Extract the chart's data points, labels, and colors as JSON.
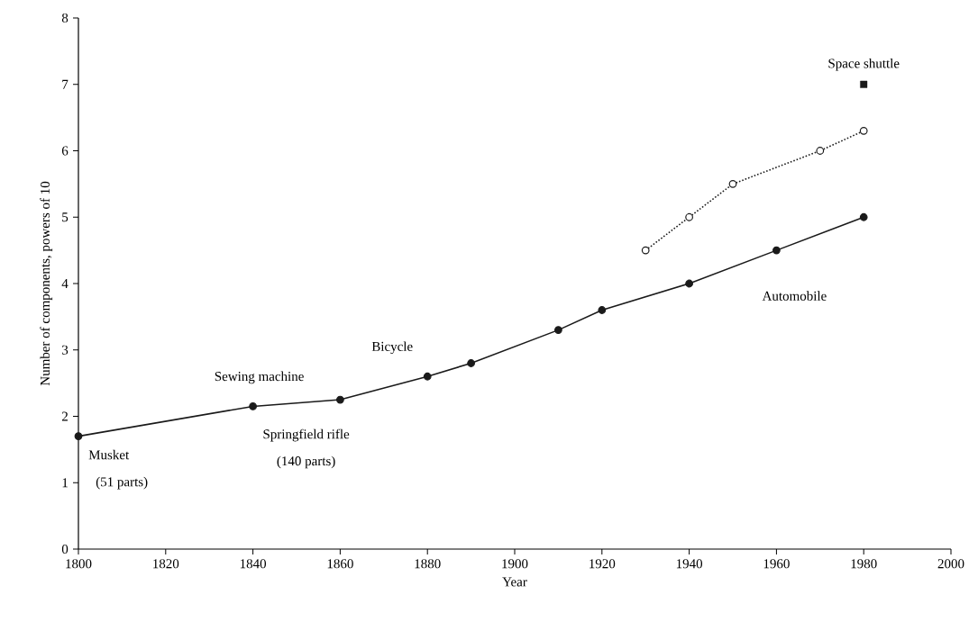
{
  "chart_data": {
    "type": "line",
    "xlabel": "Year",
    "ylabel": "Number of components, powers of 10",
    "xlim": [
      1800,
      2000
    ],
    "xticks": [
      1800,
      1820,
      1840,
      1860,
      1880,
      1900,
      1920,
      1940,
      1960,
      1980,
      2000
    ],
    "ylim": [
      0,
      8
    ],
    "yticks": [
      0,
      1,
      2,
      3,
      4,
      5,
      6,
      7,
      8
    ],
    "grid": false,
    "series": [
      {
        "name": "Automobile",
        "color": "#1a1a1a",
        "marker": "circle",
        "line_style": "solid",
        "x": [
          1800,
          1840,
          1860,
          1880,
          1890,
          1910,
          1920,
          1940,
          1960,
          1980
        ],
        "values": [
          1.7,
          2.15,
          2.25,
          2.6,
          2.8,
          3.3,
          3.6,
          4.0,
          4.5,
          5.0
        ]
      },
      {
        "color": "#1a1a1a",
        "marker": "circle",
        "line_style": "dotted",
        "x": [
          1930,
          1940,
          1950,
          1970,
          1980
        ],
        "values": [
          4.5,
          5.0,
          5.5,
          6.0,
          6.3
        ]
      },
      {
        "name": "Space shuttle",
        "type": "scatter",
        "color": "#1a1a1a",
        "marker": "square",
        "x": [
          1980
        ],
        "values": [
          7.0
        ]
      }
    ],
    "annotations": [
      {
        "text": "Musket",
        "x": 1800,
        "y": 1.7
      },
      "(51 parts)",
      {
        "text": "Springfield rifle",
        "x": 1840,
        "y": 2.15
      },
      "(140 parts)",
      {
        "text": "Sewing machine",
        "x": 1840,
        "y": 2.15
      },
      {
        "text": "Bicycle",
        "x": 1880,
        "y": 2.6
      }
    ]
  }
}
